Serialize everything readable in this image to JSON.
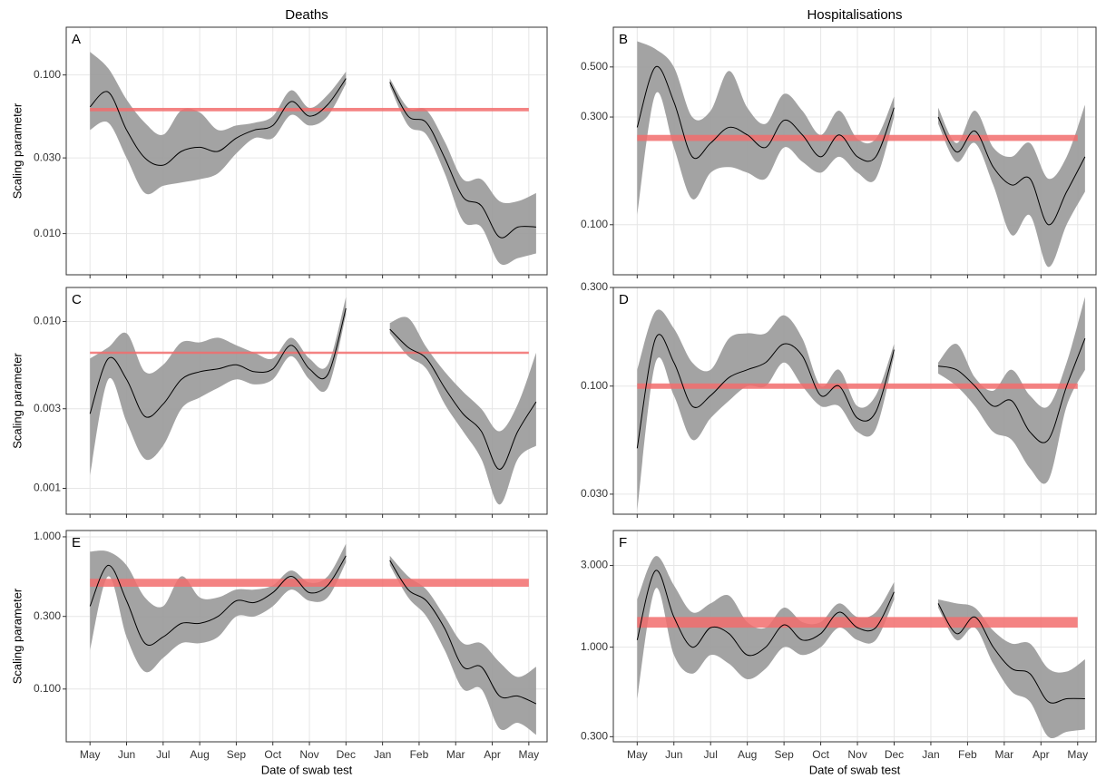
{
  "chart_data": [
    {
      "type": "line",
      "title": "Deaths",
      "panel": "A",
      "ylabel": "Scaling parameter",
      "log_y": true,
      "grid": true,
      "xlim": [
        -0.65,
        12.5
      ],
      "xticks": [
        0,
        1,
        2,
        3,
        4,
        5,
        6,
        7,
        8,
        9,
        10,
        11,
        12
      ],
      "ylim": [
        0.0055,
        0.2
      ],
      "yticks": [
        {
          "value": 0.01,
          "label": "0.010"
        },
        {
          "value": 0.03,
          "label": "0.030"
        },
        {
          "value": 0.1,
          "label": "0.100"
        }
      ],
      "x": [
        0,
        0.5,
        1,
        1.5,
        2,
        2.5,
        3,
        3.5,
        4,
        4.5,
        5,
        5.5,
        6,
        6.5,
        7,
        7.6,
        8.2,
        8.7,
        9.2,
        9.7,
        10.2,
        10.7,
        11.2,
        11.7,
        12.2
      ],
      "series": [
        {
          "color": "#000000",
          "band_color": "#999999",
          "values": [
            0.063,
            0.078,
            0.045,
            0.03,
            0.027,
            0.033,
            0.035,
            0.033,
            0.04,
            0.045,
            0.048,
            0.068,
            0.055,
            0.065,
            0.095,
            null,
            0.09,
            0.055,
            0.05,
            0.03,
            0.017,
            0.015,
            0.0095,
            0.011,
            0.011
          ],
          "lower": [
            0.045,
            0.05,
            0.03,
            0.018,
            0.02,
            0.021,
            0.022,
            0.024,
            0.032,
            0.04,
            0.04,
            0.056,
            0.048,
            0.055,
            0.088,
            null,
            0.085,
            0.048,
            0.042,
            0.024,
            0.012,
            0.011,
            0.0065,
            0.007,
            0.0075
          ],
          "upper": [
            0.14,
            0.11,
            0.07,
            0.05,
            0.042,
            0.06,
            0.058,
            0.045,
            0.048,
            0.05,
            0.055,
            0.08,
            0.062,
            0.075,
            0.105,
            null,
            0.095,
            0.062,
            0.06,
            0.038,
            0.022,
            0.022,
            0.016,
            0.016,
            0.018
          ]
        }
      ],
      "reference": {
        "lower": 0.059,
        "upper": 0.062,
        "x": [
          0,
          12
        ],
        "color": "#f26d6d"
      }
    },
    {
      "type": "line",
      "title": "Hospitalisations",
      "panel": "B",
      "log_y": true,
      "grid": true,
      "xlim": [
        -0.65,
        12.5
      ],
      "xticks": [
        0,
        1,
        2,
        3,
        4,
        5,
        6,
        7,
        8,
        9,
        10,
        11,
        12
      ],
      "ylim": [
        0.06,
        0.75
      ],
      "yticks": [
        {
          "value": 0.1,
          "label": "0.100"
        },
        {
          "value": 0.3,
          "label": "0.300"
        },
        {
          "value": 0.5,
          "label": "0.500"
        }
      ],
      "x": [
        0,
        0.5,
        1,
        1.5,
        2,
        2.5,
        3,
        3.5,
        4,
        4.5,
        5,
        5.5,
        6,
        6.5,
        7,
        7.6,
        8.2,
        8.7,
        9.2,
        9.7,
        10.2,
        10.7,
        11.2,
        11.7,
        12.2
      ],
      "series": [
        {
          "color": "#000000",
          "band_color": "#999999",
          "values": [
            0.27,
            0.5,
            0.35,
            0.2,
            0.23,
            0.27,
            0.25,
            0.22,
            0.29,
            0.25,
            0.2,
            0.25,
            0.2,
            0.2,
            0.33,
            null,
            0.3,
            0.21,
            0.26,
            0.18,
            0.15,
            0.16,
            0.1,
            0.14,
            0.2
          ],
          "lower": [
            0.11,
            0.38,
            0.22,
            0.13,
            0.17,
            0.18,
            0.17,
            0.16,
            0.22,
            0.19,
            0.17,
            0.2,
            0.17,
            0.16,
            0.3,
            null,
            0.28,
            0.19,
            0.23,
            0.15,
            0.09,
            0.11,
            0.065,
            0.1,
            0.14
          ],
          "upper": [
            0.65,
            0.6,
            0.5,
            0.3,
            0.32,
            0.48,
            0.33,
            0.28,
            0.38,
            0.32,
            0.25,
            0.32,
            0.24,
            0.24,
            0.37,
            null,
            0.33,
            0.23,
            0.32,
            0.22,
            0.2,
            0.23,
            0.16,
            0.2,
            0.34
          ]
        }
      ],
      "reference": {
        "lower": 0.235,
        "upper": 0.25,
        "x": [
          0,
          12
        ],
        "color": "#f26d6d"
      }
    },
    {
      "type": "line",
      "panel": "C",
      "ylabel": "Scaling parameter",
      "log_y": true,
      "grid": true,
      "xlim": [
        -0.65,
        12.5
      ],
      "xticks": [
        0,
        1,
        2,
        3,
        4,
        5,
        6,
        7,
        8,
        9,
        10,
        11,
        12
      ],
      "ylim": [
        0.0007,
        0.016
      ],
      "yticks": [
        {
          "value": 0.001,
          "label": "0.001"
        },
        {
          "value": 0.003,
          "label": "0.003"
        },
        {
          "value": 0.01,
          "label": "0.010"
        }
      ],
      "x": [
        0,
        0.5,
        1,
        1.5,
        2,
        2.5,
        3,
        3.5,
        4,
        4.5,
        5,
        5.5,
        6,
        6.5,
        7,
        7.6,
        8.2,
        8.7,
        9.2,
        9.7,
        10.2,
        10.7,
        11.2,
        11.7,
        12.2
      ],
      "series": [
        {
          "color": "#000000",
          "band_color": "#999999",
          "values": [
            0.0028,
            0.006,
            0.0045,
            0.0027,
            0.0032,
            0.0045,
            0.005,
            0.0052,
            0.0055,
            0.005,
            0.0052,
            0.0072,
            0.0052,
            0.0048,
            0.012,
            null,
            0.009,
            0.007,
            0.006,
            0.004,
            0.0028,
            0.0022,
            0.0013,
            0.0022,
            0.0033
          ],
          "lower": [
            0.0012,
            0.0045,
            0.0025,
            0.0015,
            0.0018,
            0.003,
            0.0035,
            0.004,
            0.0045,
            0.0042,
            0.0045,
            0.0062,
            0.0045,
            0.004,
            0.011,
            null,
            0.0085,
            0.0062,
            0.0052,
            0.0032,
            0.0022,
            0.0015,
            0.0008,
            0.0015,
            0.0018
          ],
          "upper": [
            0.006,
            0.007,
            0.0085,
            0.005,
            0.0055,
            0.0075,
            0.0075,
            0.008,
            0.0072,
            0.0065,
            0.006,
            0.008,
            0.006,
            0.0055,
            0.014,
            null,
            0.0098,
            0.0105,
            0.007,
            0.005,
            0.0038,
            0.003,
            0.0022,
            0.0032,
            0.0065
          ]
        }
      ],
      "reference": {
        "lower": 0.0064,
        "upper": 0.0066,
        "x": [
          0,
          12
        ],
        "color": "#f26d6d"
      }
    },
    {
      "type": "line",
      "panel": "D",
      "log_y": true,
      "grid": true,
      "xlim": [
        -0.65,
        12.5
      ],
      "xticks": [
        0,
        1,
        2,
        3,
        4,
        5,
        6,
        7,
        8,
        9,
        10,
        11,
        12
      ],
      "ylim": [
        0.024,
        0.3
      ],
      "yticks": [
        {
          "value": 0.03,
          "label": "0.030"
        },
        {
          "value": 0.1,
          "label": "0.100"
        },
        {
          "value": 0.3,
          "label": "0.300"
        }
      ],
      "x": [
        0,
        0.5,
        1,
        1.5,
        2,
        2.5,
        3,
        3.5,
        4,
        4.5,
        5,
        5.5,
        6,
        6.5,
        7,
        7.6,
        8.2,
        8.7,
        9.2,
        9.7,
        10.2,
        10.7,
        11.2,
        11.7,
        12.2
      ],
      "series": [
        {
          "color": "#000000",
          "band_color": "#999999",
          "values": [
            0.05,
            0.17,
            0.13,
            0.08,
            0.09,
            0.11,
            0.12,
            0.13,
            0.16,
            0.14,
            0.09,
            0.1,
            0.07,
            0.075,
            0.15,
            null,
            0.125,
            0.12,
            0.1,
            0.08,
            0.085,
            0.06,
            0.055,
            0.1,
            0.17
          ],
          "lower": [
            0.025,
            0.13,
            0.09,
            0.055,
            0.07,
            0.085,
            0.1,
            0.1,
            0.13,
            0.1,
            0.08,
            0.08,
            0.06,
            0.062,
            0.14,
            null,
            0.115,
            0.1,
            0.08,
            0.06,
            0.055,
            0.04,
            0.035,
            0.08,
            0.12
          ],
          "upper": [
            0.12,
            0.23,
            0.19,
            0.13,
            0.12,
            0.17,
            0.18,
            0.18,
            0.22,
            0.17,
            0.1,
            0.12,
            0.08,
            0.09,
            0.16,
            null,
            0.13,
            0.16,
            0.11,
            0.095,
            0.12,
            0.09,
            0.08,
            0.13,
            0.27
          ]
        }
      ],
      "reference": {
        "lower": 0.097,
        "upper": 0.103,
        "x": [
          0,
          12
        ],
        "color": "#f26d6d"
      }
    },
    {
      "type": "line",
      "panel": "E",
      "ylabel": "Scaling parameter",
      "xlabel": "Date of swab test",
      "log_y": true,
      "grid": true,
      "xlim": [
        -0.65,
        12.5
      ],
      "xticks": [
        {
          "value": 0,
          "label": "May"
        },
        {
          "value": 1,
          "label": "Jun"
        },
        {
          "value": 2,
          "label": "Jul"
        },
        {
          "value": 3,
          "label": "Aug"
        },
        {
          "value": 4,
          "label": "Sep"
        },
        {
          "value": 5,
          "label": "Oct"
        },
        {
          "value": 6,
          "label": "Nov"
        },
        {
          "value": 7,
          "label": "Dec"
        },
        {
          "value": 8,
          "label": "Jan"
        },
        {
          "value": 9,
          "label": "Feb"
        },
        {
          "value": 10,
          "label": "Mar"
        },
        {
          "value": 11,
          "label": "Apr"
        },
        {
          "value": 12,
          "label": "May"
        }
      ],
      "ylim": [
        0.045,
        1.1
      ],
      "yticks": [
        {
          "value": 0.1,
          "label": "0.100"
        },
        {
          "value": 0.3,
          "label": "0.300"
        },
        {
          "value": 1,
          "label": "1.000"
        }
      ],
      "x": [
        0,
        0.5,
        1,
        1.5,
        2,
        2.5,
        3,
        3.5,
        4,
        4.5,
        5,
        5.5,
        6,
        6.5,
        7,
        7.6,
        8.2,
        8.7,
        9.2,
        9.7,
        10.2,
        10.7,
        11.2,
        11.7,
        12.2
      ],
      "series": [
        {
          "color": "#000000",
          "band_color": "#999999",
          "values": [
            0.35,
            0.65,
            0.38,
            0.2,
            0.22,
            0.27,
            0.27,
            0.3,
            0.38,
            0.37,
            0.43,
            0.55,
            0.43,
            0.48,
            0.75,
            null,
            0.7,
            0.45,
            0.38,
            0.25,
            0.14,
            0.14,
            0.09,
            0.09,
            0.08
          ],
          "lower": [
            0.18,
            0.55,
            0.22,
            0.13,
            0.16,
            0.2,
            0.2,
            0.22,
            0.3,
            0.3,
            0.35,
            0.45,
            0.38,
            0.4,
            0.68,
            null,
            0.65,
            0.4,
            0.3,
            0.18,
            0.1,
            0.1,
            0.055,
            0.06,
            0.05
          ],
          "upper": [
            0.8,
            0.8,
            0.65,
            0.4,
            0.35,
            0.55,
            0.4,
            0.4,
            0.45,
            0.45,
            0.48,
            0.6,
            0.5,
            0.55,
            0.9,
            null,
            0.75,
            0.55,
            0.45,
            0.3,
            0.2,
            0.2,
            0.15,
            0.12,
            0.14
          ]
        }
      ],
      "reference": {
        "lower": 0.47,
        "upper": 0.53,
        "x": [
          0,
          12
        ],
        "color": "#f26d6d"
      }
    },
    {
      "type": "line",
      "panel": "F",
      "xlabel": "Date of swab test",
      "log_y": true,
      "grid": true,
      "xlim": [
        -0.65,
        12.5
      ],
      "xticks": [
        {
          "value": 0,
          "label": "May"
        },
        {
          "value": 1,
          "label": "Jun"
        },
        {
          "value": 2,
          "label": "Jul"
        },
        {
          "value": 3,
          "label": "Aug"
        },
        {
          "value": 4,
          "label": "Sep"
        },
        {
          "value": 5,
          "label": "Oct"
        },
        {
          "value": 6,
          "label": "Nov"
        },
        {
          "value": 7,
          "label": "Dec"
        },
        {
          "value": 8,
          "label": "Jan"
        },
        {
          "value": 9,
          "label": "Feb"
        },
        {
          "value": 10,
          "label": "Mar"
        },
        {
          "value": 11,
          "label": "Apr"
        },
        {
          "value": 12,
          "label": "May"
        }
      ],
      "ylim": [
        0.28,
        4.8
      ],
      "yticks": [
        {
          "value": 0.3,
          "label": "0.300"
        },
        {
          "value": 1,
          "label": "1.000"
        },
        {
          "value": 3,
          "label": "3.000"
        }
      ],
      "x": [
        0,
        0.5,
        1,
        1.5,
        2,
        2.5,
        3,
        3.5,
        4,
        4.5,
        5,
        5.5,
        6,
        6.5,
        7,
        7.6,
        8.2,
        8.7,
        9.2,
        9.7,
        10.2,
        10.7,
        11.2,
        11.7,
        12.2
      ],
      "series": [
        {
          "color": "#000000",
          "band_color": "#999999",
          "values": [
            1.1,
            2.8,
            1.5,
            1.0,
            1.3,
            1.2,
            0.9,
            1.0,
            1.35,
            1.1,
            1.2,
            1.6,
            1.3,
            1.3,
            2.1,
            null,
            1.8,
            1.2,
            1.5,
            1.0,
            0.75,
            0.7,
            0.48,
            0.5,
            0.5
          ],
          "lower": [
            0.5,
            2.2,
            0.9,
            0.7,
            0.9,
            0.8,
            0.65,
            0.75,
            1.0,
            0.9,
            1.0,
            1.3,
            1.1,
            1.1,
            1.9,
            null,
            1.7,
            1.1,
            1.3,
            0.8,
            0.55,
            0.48,
            0.3,
            0.32,
            0.33
          ],
          "upper": [
            1.9,
            3.4,
            2.3,
            1.6,
            1.8,
            2.0,
            1.4,
            1.3,
            1.7,
            1.4,
            1.4,
            1.8,
            1.5,
            1.6,
            2.4,
            null,
            1.9,
            1.8,
            1.7,
            1.25,
            1.05,
            1.05,
            0.75,
            0.72,
            0.85
          ]
        }
      ],
      "reference": {
        "lower": 1.3,
        "upper": 1.5,
        "x": [
          0,
          12
        ],
        "color": "#f26d6d"
      }
    }
  ]
}
